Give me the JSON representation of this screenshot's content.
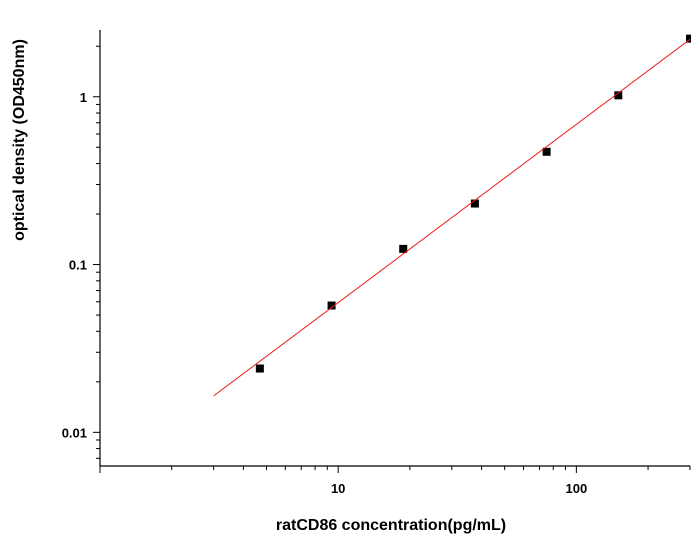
{
  "chart_data": {
    "type": "scatter",
    "xlabel": "ratCD86  concentration(pg/mL)",
    "ylabel": "optical density (OD450nm)",
    "x_scale": "log",
    "y_scale": "log",
    "xlim": [
      1,
      300
    ],
    "ylim": [
      0.0063,
      2.5
    ],
    "x_ticks": [
      {
        "value": 10,
        "label": "10"
      },
      {
        "value": 100,
        "label": "100"
      }
    ],
    "y_ticks": [
      {
        "value": 0.01,
        "label": "0.01"
      },
      {
        "value": 0.1,
        "label": "0.1"
      },
      {
        "value": 1,
        "label": "1"
      }
    ],
    "grid": false,
    "series": [
      {
        "type": "scatter",
        "marker": "square",
        "color": "#000000",
        "points": [
          {
            "x": 4.69,
            "y": 0.024
          },
          {
            "x": 9.38,
            "y": 0.057
          },
          {
            "x": 18.75,
            "y": 0.124
          },
          {
            "x": 37.5,
            "y": 0.231
          },
          {
            "x": 75,
            "y": 0.47
          },
          {
            "x": 150,
            "y": 1.02
          },
          {
            "x": 300,
            "y": 2.22
          }
        ]
      },
      {
        "type": "line",
        "color": "#e81c1c",
        "points": [
          {
            "x": 3.0,
            "y": 0.0165
          },
          {
            "x": 300,
            "y": 2.2
          }
        ]
      }
    ]
  }
}
